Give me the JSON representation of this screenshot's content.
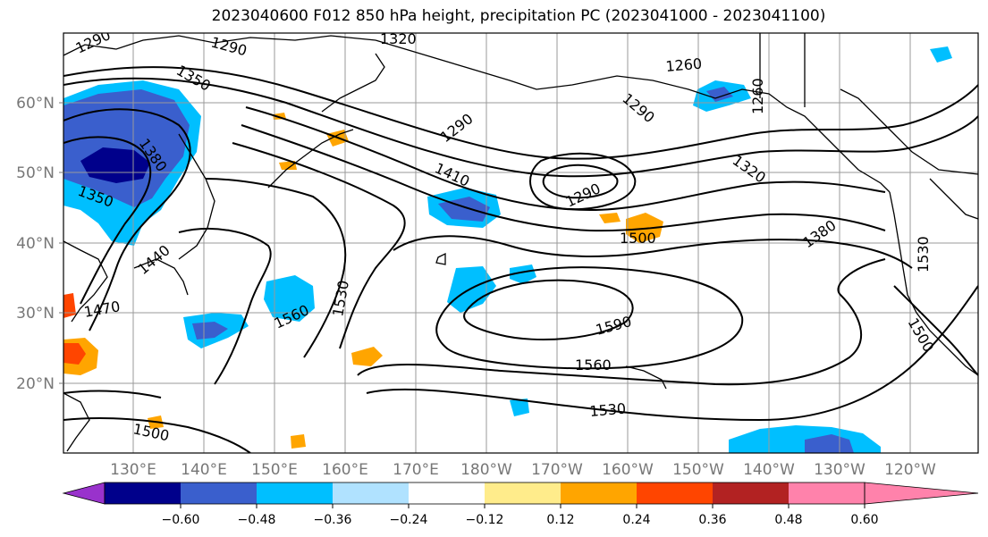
{
  "title": "2023040600 F012 850 hPa height, precipitation PC (2023041000 - 2023041100)",
  "longitude_labels": [
    "130°E",
    "140°E",
    "150°E",
    "160°E",
    "170°E",
    "180°W",
    "170°W",
    "160°W",
    "150°W",
    "140°W",
    "130°W",
    "120°W"
  ],
  "latitude_labels": [
    "60°N",
    "50°N",
    "40°N",
    "30°N",
    "20°N"
  ],
  "contour_labels": [
    "1290",
    "1290",
    "1320",
    "1260",
    "1350",
    "1290",
    "1290",
    "1260",
    "1380",
    "1350",
    "1320",
    "1410",
    "1290",
    "1500",
    "1380",
    "1440",
    "1530",
    "1560",
    "1530",
    "1470",
    "1590",
    "1560",
    "1500",
    "1530",
    "1500"
  ],
  "colorbar": {
    "colors": [
      "#9932cc",
      "#00008b",
      "#3a5fcd",
      "#00bfff",
      "#b0e2ff",
      "#ffffff",
      "#ffec8b",
      "#ffa500",
      "#ff4500",
      "#b22222",
      "#ff82ab"
    ],
    "tick_labels": [
      "−0.60",
      "−0.48",
      "−0.36",
      "−0.24",
      "−0.12",
      "0.12",
      "0.24",
      "0.36",
      "0.48",
      "0.60"
    ]
  }
}
